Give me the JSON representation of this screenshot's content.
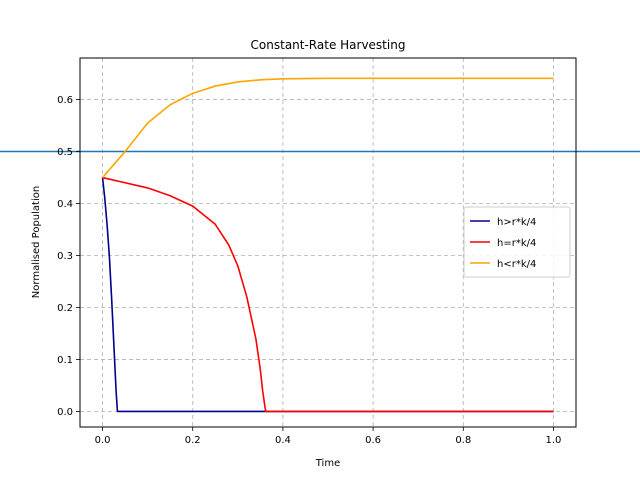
{
  "chart_data": {
    "type": "line",
    "title": "Constant-Rate Harvesting",
    "xlabel": "Time",
    "ylabel": "Normalised Population",
    "xlim": [
      -0.05,
      1.05
    ],
    "ylim": [
      -0.03,
      0.68
    ],
    "xticks": [
      0.0,
      0.2,
      0.4,
      0.6,
      0.8,
      1.0
    ],
    "xtick_labels": [
      "0.0",
      "0.2",
      "0.4",
      "0.6",
      "0.8",
      "1.0"
    ],
    "yticks": [
      0.0,
      0.1,
      0.2,
      0.3,
      0.4,
      0.5,
      0.6
    ],
    "ytick_labels": [
      "0.0",
      "0.1",
      "0.2",
      "0.3",
      "0.4",
      "0.5",
      "0.6"
    ],
    "grid": true,
    "legend_position": "center-right",
    "hline": {
      "y": 0.5,
      "color": "#1f77b4"
    },
    "series": [
      {
        "name": "h>r*k/4",
        "color": "#00008b",
        "x": [
          0.0,
          0.005,
          0.01,
          0.015,
          0.02,
          0.025,
          0.03,
          0.033,
          0.1,
          0.2,
          0.4,
          0.6,
          0.8,
          1.0
        ],
        "y": [
          0.45,
          0.41,
          0.36,
          0.3,
          0.22,
          0.13,
          0.04,
          0.0,
          0.0,
          0.0,
          0.0,
          0.0,
          0.0,
          0.0
        ]
      },
      {
        "name": "h=r*k/4",
        "color": "#ff0000",
        "x": [
          0.0,
          0.05,
          0.1,
          0.15,
          0.2,
          0.25,
          0.28,
          0.3,
          0.32,
          0.34,
          0.35,
          0.355,
          0.36,
          0.362,
          0.4,
          0.6,
          0.8,
          1.0
        ],
        "y": [
          0.45,
          0.44,
          0.43,
          0.415,
          0.395,
          0.36,
          0.32,
          0.28,
          0.22,
          0.14,
          0.08,
          0.04,
          0.01,
          0.0,
          0.0,
          0.0,
          0.0,
          0.0
        ]
      },
      {
        "name": "h<r*k/4",
        "color": "#ffa500",
        "x": [
          0.0,
          0.05,
          0.1,
          0.15,
          0.2,
          0.25,
          0.3,
          0.35,
          0.4,
          0.5,
          0.6,
          0.7,
          0.8,
          0.9,
          1.0
        ],
        "y": [
          0.45,
          0.5,
          0.555,
          0.59,
          0.612,
          0.626,
          0.634,
          0.638,
          0.64,
          0.641,
          0.641,
          0.641,
          0.641,
          0.641,
          0.641
        ]
      }
    ]
  }
}
